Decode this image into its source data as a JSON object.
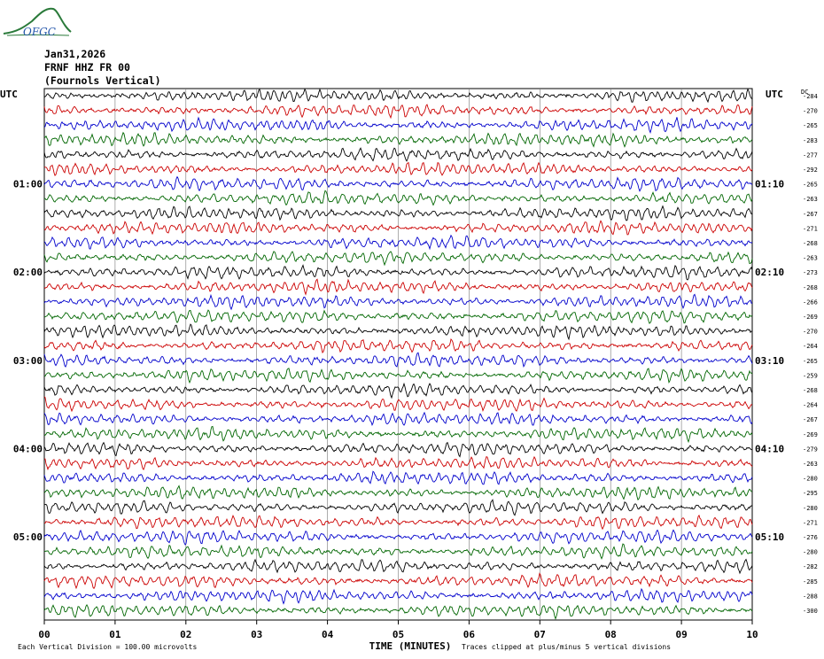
{
  "header": {
    "logo_text": "OFGC",
    "date": "Jan31,2026",
    "station": "FRNF HHZ FR 00",
    "description": "(Fournols Vertical)",
    "utc_left": "UTC",
    "utc_right": "UTC",
    "dc_label": "DC"
  },
  "footer": {
    "time_label": "TIME (MINUTES)",
    "scale_note": "Each Vertical Division =  100.00 microvolts",
    "clip_note": "Traces clipped at plus/minus 5 vertical divisions"
  },
  "colors": {
    "trace_cycle": [
      "#000000",
      "#cc0000",
      "#0000cc",
      "#006600"
    ],
    "grid": "#000000",
    "logo": "#2a7a3a"
  },
  "chart_data": {
    "type": "line",
    "title": "",
    "xlabel": "TIME (MINUTES)",
    "ylabel": "",
    "x_range": [
      0,
      10
    ],
    "x_ticks": [
      "00",
      "01",
      "02",
      "03",
      "04",
      "05",
      "06",
      "07",
      "08",
      "09",
      "10"
    ],
    "left_hour_labels": [
      {
        "trace_index": 6,
        "label": "01:00"
      },
      {
        "trace_index": 12,
        "label": "02:00"
      },
      {
        "trace_index": 18,
        "label": "03:00"
      },
      {
        "trace_index": 24,
        "label": "04:00"
      },
      {
        "trace_index": 30,
        "label": "05:00"
      }
    ],
    "right_hour_labels": [
      {
        "trace_index": 6,
        "label": "01:10"
      },
      {
        "trace_index": 12,
        "label": "02:10"
      },
      {
        "trace_index": 18,
        "label": "03:10"
      },
      {
        "trace_index": 24,
        "label": "04:10"
      },
      {
        "trace_index": 30,
        "label": "05:10"
      }
    ],
    "trace_count": 36,
    "minutes_per_trace": 10,
    "dc_offsets": [
      -284,
      -270,
      -265,
      -283,
      -277,
      -292,
      -265,
      -263,
      -267,
      -271,
      -268,
      -263,
      -273,
      -268,
      -266,
      -269,
      -270,
      -264,
      -265,
      -259,
      -268,
      -264,
      -267,
      -269,
      -279,
      -263,
      -280,
      -295,
      -280,
      -271,
      -276,
      -280,
      -282,
      -285,
      -288,
      -300
    ],
    "grid": true
  }
}
